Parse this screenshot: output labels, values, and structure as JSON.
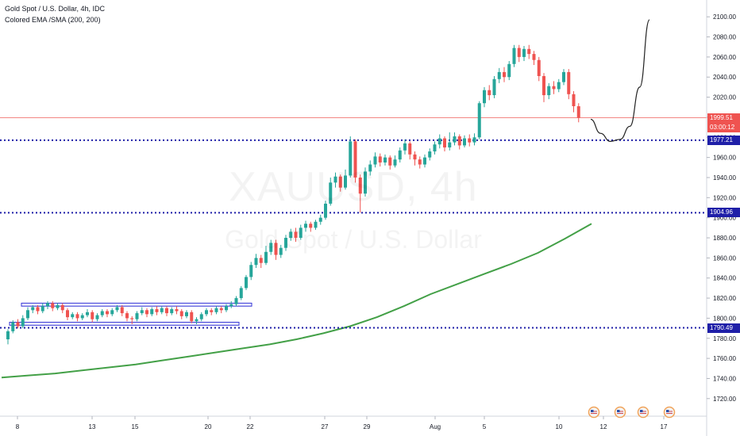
{
  "header": {
    "symbol_line": "Gold Spot / U.S. Dollar, 4h, IDC",
    "indicator_line": "Colored EMA /SMA (200, 200)"
  },
  "watermark": {
    "ticker": "XAUUSD, 4h",
    "name": "Gold Spot / U.S. Dollar"
  },
  "colors": {
    "up": "#26a69a",
    "down": "#ef5350",
    "ema": "#43a047",
    "level": "#1f1fa8",
    "price_line": "#ef5350",
    "box": "#3535d6",
    "projection": "#222222"
  },
  "tags": {
    "last_price": "1999.51",
    "countdown": "03:00:12",
    "level_1": "1977.21",
    "level_2": "1904.96",
    "level_3": "1790.49"
  },
  "chart_data": {
    "type": "candlestick",
    "interval": "4h",
    "ylim": [
      1708,
      2112
    ],
    "y_ticks": [
      1720,
      1740,
      1760,
      1780,
      1800,
      1820,
      1840,
      1860,
      1880,
      1900,
      1920,
      1940,
      1960,
      1980,
      2000,
      2020,
      2040,
      2060,
      2080,
      2100
    ],
    "x_ticks": [
      "8",
      "13",
      "15",
      "20",
      "22",
      "27",
      "29",
      "Aug",
      "5",
      "10",
      "12",
      "17"
    ],
    "candles": [
      [
        1779,
        1787,
        1774,
        1789
      ],
      [
        1787,
        1796,
        1785,
        1798
      ],
      [
        1796,
        1792,
        1790,
        1799
      ],
      [
        1792,
        1800,
        1790,
        1803
      ],
      [
        1800,
        1808,
        1798,
        1811
      ],
      [
        1808,
        1811,
        1805,
        1813
      ],
      [
        1811,
        1807,
        1804,
        1813
      ],
      [
        1807,
        1812,
        1805,
        1815
      ],
      [
        1812,
        1815,
        1809,
        1817
      ],
      [
        1815,
        1810,
        1807,
        1817
      ],
      [
        1810,
        1813,
        1808,
        1815
      ],
      [
        1813,
        1808,
        1805,
        1815
      ],
      [
        1808,
        1801,
        1798,
        1810
      ],
      [
        1801,
        1804,
        1799,
        1806
      ],
      [
        1804,
        1800,
        1797,
        1806
      ],
      [
        1800,
        1803,
        1798,
        1805
      ],
      [
        1803,
        1806,
        1801,
        1809
      ],
      [
        1806,
        1799,
        1796,
        1808
      ],
      [
        1799,
        1803,
        1797,
        1805
      ],
      [
        1803,
        1807,
        1801,
        1809
      ],
      [
        1807,
        1804,
        1801,
        1809
      ],
      [
        1804,
        1808,
        1802,
        1810
      ],
      [
        1808,
        1811,
        1806,
        1813
      ],
      [
        1811,
        1805,
        1802,
        1813
      ],
      [
        1805,
        1800,
        1797,
        1807
      ],
      [
        1800,
        1799,
        1794,
        1802
      ],
      [
        1799,
        1805,
        1797,
        1807
      ],
      [
        1805,
        1808,
        1803,
        1811
      ],
      [
        1808,
        1804,
        1801,
        1810
      ],
      [
        1804,
        1809,
        1802,
        1811
      ],
      [
        1809,
        1806,
        1803,
        1812
      ],
      [
        1806,
        1810,
        1804,
        1812
      ],
      [
        1810,
        1805,
        1802,
        1812
      ],
      [
        1805,
        1809,
        1803,
        1811
      ],
      [
        1809,
        1807,
        1804,
        1812
      ],
      [
        1807,
        1802,
        1799,
        1809
      ],
      [
        1802,
        1806,
        1800,
        1808
      ],
      [
        1806,
        1797,
        1795,
        1808
      ],
      [
        1797,
        1799,
        1794,
        1801
      ],
      [
        1799,
        1804,
        1797,
        1806
      ],
      [
        1804,
        1808,
        1802,
        1810
      ],
      [
        1808,
        1806,
        1803,
        1810
      ],
      [
        1806,
        1810,
        1804,
        1812
      ],
      [
        1810,
        1808,
        1805,
        1812
      ],
      [
        1808,
        1812,
        1806,
        1814
      ],
      [
        1812,
        1814,
        1810,
        1817
      ],
      [
        1814,
        1820,
        1812,
        1822
      ],
      [
        1820,
        1830,
        1818,
        1832
      ],
      [
        1830,
        1841,
        1828,
        1843
      ],
      [
        1841,
        1853,
        1838,
        1856
      ],
      [
        1853,
        1860,
        1850,
        1864
      ],
      [
        1860,
        1855,
        1850,
        1863
      ],
      [
        1855,
        1866,
        1853,
        1872
      ],
      [
        1866,
        1875,
        1863,
        1878
      ],
      [
        1875,
        1863,
        1858,
        1878
      ],
      [
        1863,
        1870,
        1860,
        1873
      ],
      [
        1870,
        1880,
        1867,
        1883
      ],
      [
        1880,
        1886,
        1877,
        1889
      ],
      [
        1886,
        1880,
        1876,
        1890
      ],
      [
        1880,
        1890,
        1878,
        1893
      ],
      [
        1890,
        1894,
        1886,
        1897
      ],
      [
        1894,
        1890,
        1886,
        1896
      ],
      [
        1890,
        1896,
        1888,
        1898
      ],
      [
        1896,
        1900,
        1893,
        1903
      ],
      [
        1900,
        1914,
        1898,
        1917
      ],
      [
        1914,
        1935,
        1912,
        1940
      ],
      [
        1935,
        1941,
        1930,
        1945
      ],
      [
        1941,
        1930,
        1926,
        1943
      ],
      [
        1930,
        1942,
        1928,
        1948
      ],
      [
        1942,
        1976,
        1940,
        1981
      ],
      [
        1976,
        1940,
        1935,
        1978
      ],
      [
        1940,
        1924,
        1905,
        1943
      ],
      [
        1924,
        1946,
        1921,
        1950
      ],
      [
        1946,
        1953,
        1942,
        1957
      ],
      [
        1953,
        1961,
        1950,
        1965
      ],
      [
        1961,
        1955,
        1951,
        1964
      ],
      [
        1955,
        1960,
        1952,
        1963
      ],
      [
        1960,
        1952,
        1948,
        1962
      ],
      [
        1952,
        1958,
        1950,
        1962
      ],
      [
        1958,
        1967,
        1955,
        1970
      ],
      [
        1967,
        1974,
        1963,
        1978
      ],
      [
        1974,
        1963,
        1958,
        1976
      ],
      [
        1963,
        1958,
        1952,
        1966
      ],
      [
        1958,
        1953,
        1949,
        1961
      ],
      [
        1953,
        1960,
        1950,
        1963
      ],
      [
        1960,
        1966,
        1957,
        1969
      ],
      [
        1966,
        1973,
        1963,
        1976
      ],
      [
        1973,
        1979,
        1969,
        1983
      ],
      [
        1979,
        1970,
        1966,
        1981
      ],
      [
        1970,
        1975,
        1967,
        1985
      ],
      [
        1975,
        1981,
        1972,
        1985
      ],
      [
        1981,
        1972,
        1968,
        1983
      ],
      [
        1972,
        1979,
        1970,
        1982
      ],
      [
        1979,
        1975,
        1971,
        1983
      ],
      [
        1975,
        1980,
        1972,
        1984
      ],
      [
        1980,
        2014,
        1978,
        2016
      ],
      [
        2014,
        2027,
        2010,
        2030
      ],
      [
        2027,
        2022,
        2017,
        2032
      ],
      [
        2022,
        2038,
        2019,
        2041
      ],
      [
        2038,
        2045,
        2034,
        2049
      ],
      [
        2045,
        2040,
        2035,
        2050
      ],
      [
        2040,
        2053,
        2037,
        2056
      ],
      [
        2053,
        2069,
        2050,
        2072
      ],
      [
        2069,
        2060,
        2055,
        2072
      ],
      [
        2060,
        2068,
        2056,
        2071
      ],
      [
        2068,
        2063,
        2058,
        2072
      ],
      [
        2063,
        2057,
        2052,
        2066
      ],
      [
        2057,
        2041,
        2036,
        2060
      ],
      [
        2041,
        2022,
        2015,
        2044
      ],
      [
        2022,
        2031,
        2018,
        2034
      ],
      [
        2031,
        2028,
        2023,
        2036
      ],
      [
        2028,
        2035,
        2025,
        2038
      ],
      [
        2035,
        2045,
        2032,
        2048
      ],
      [
        2045,
        2023,
        2018,
        2048
      ],
      [
        2023,
        2011,
        2005,
        2026
      ],
      [
        2011,
        1999.51,
        1995,
        2014
      ]
    ],
    "ema_200": [
      1741,
      1743,
      1745,
      1748,
      1751,
      1754,
      1758,
      1762,
      1766,
      1770,
      1774,
      1779,
      1785,
      1792,
      1801,
      1812,
      1824,
      1834,
      1844,
      1854,
      1865,
      1879,
      1894
    ],
    "projection": [
      1998,
      1984,
      1976,
      1978,
      1991,
      2030,
      2097
    ],
    "levels": [
      1977.21,
      1904.96,
      1790.49
    ],
    "last_price": 1999.51,
    "boxes": [
      [
        1812,
        1815
      ],
      [
        1793,
        1796
      ]
    ]
  }
}
